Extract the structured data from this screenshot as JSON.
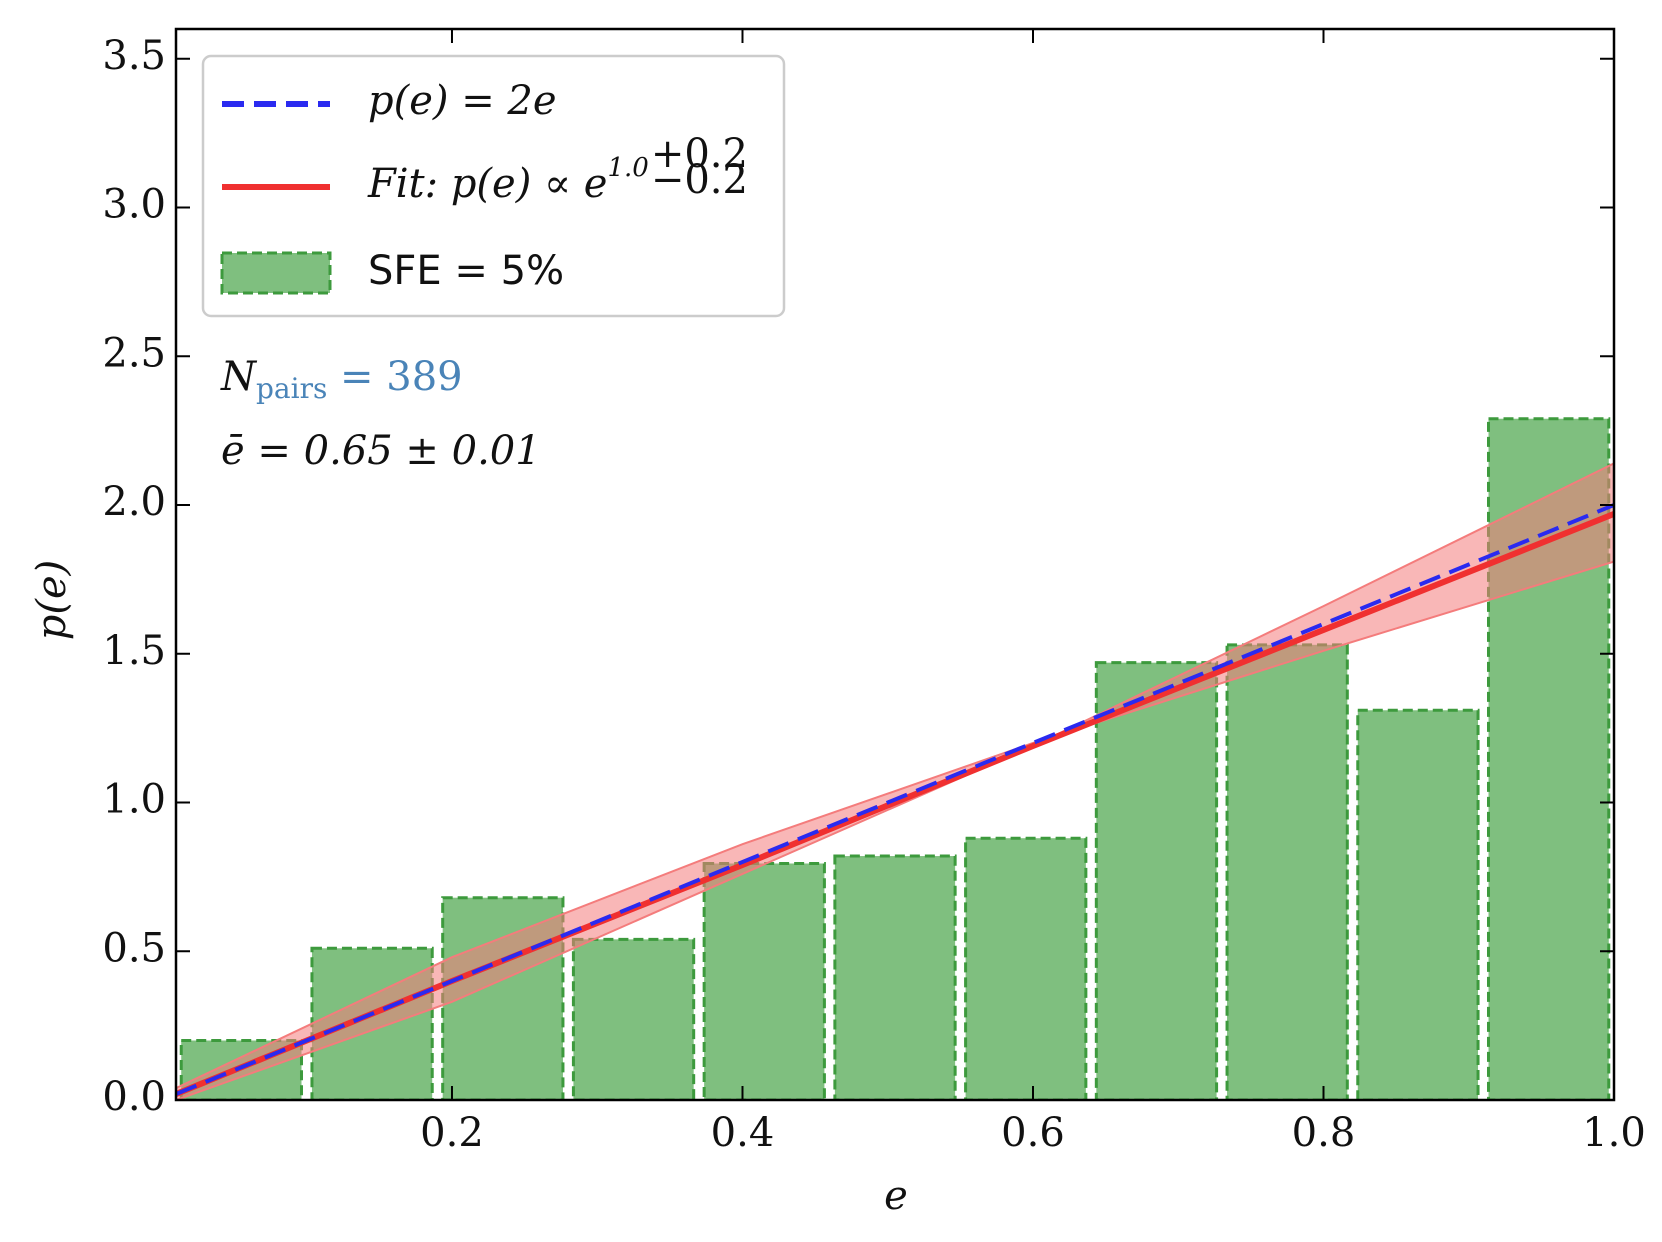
{
  "chart_data": {
    "type": "histogram",
    "xlabel": "e",
    "ylabel": "p(e)",
    "xlim": [
      0.01,
      1.0
    ],
    "ylim": [
      0,
      3.6
    ],
    "xticks": [
      0.2,
      0.4,
      0.6,
      0.8,
      {
        "value": 1.0,
        "label": "1.0"
      }
    ],
    "yticks": [
      {
        "value": 0,
        "label": "0.0"
      },
      0.5,
      {
        "value": 1,
        "label": "1.0"
      },
      1.5,
      {
        "value": 2,
        "label": "2.0"
      },
      2.5,
      {
        "value": 3,
        "label": "3.0"
      },
      3.5
    ],
    "legend": "upper left",
    "histogram": {
      "name": "SFE = 5%",
      "color": "#7fbf7f",
      "edgecolor": "#3d9a3d",
      "bins": [
        0.01,
        0.1,
        0.19,
        0.28,
        0.37,
        0.46,
        0.55,
        0.64,
        0.73,
        0.82,
        0.91,
        1.0
      ],
      "values": [
        0.2,
        0.51,
        0.68,
        0.54,
        0.795,
        0.82,
        0.88,
        1.47,
        1.53,
        1.31,
        2.29
      ]
    },
    "series": [
      {
        "name": "p(e) = 2e",
        "color": "#2a2af0",
        "dash": true,
        "x": [
          0.01,
          1.0
        ],
        "values": [
          0.02,
          2.0
        ]
      },
      {
        "name": "Fit: p(e) ∝ e",
        "exponent": "1.0",
        "err_plus": "+0.2",
        "err_minus": "−0.2",
        "color": "#f03030",
        "dash": false,
        "band_color": "#f47c7c",
        "x": [
          0.01,
          0.2,
          0.4,
          0.6,
          0.8,
          1.0
        ],
        "values": [
          0.02,
          0.4,
          0.79,
          1.19,
          1.58,
          1.97
        ],
        "band_a": [
          0.04,
          0.48,
          0.86,
          1.2,
          1.51,
          1.81
        ],
        "band_b": [
          0.0,
          0.33,
          0.76,
          1.19,
          1.66,
          2.14
        ]
      }
    ],
    "annotations": [
      {
        "text": "N",
        "sub": "pairs",
        "rest": " = 389"
      },
      {
        "text": "ē = 0.65 ± 0.01"
      }
    ],
    "annotation_color": "#4a84b8"
  }
}
